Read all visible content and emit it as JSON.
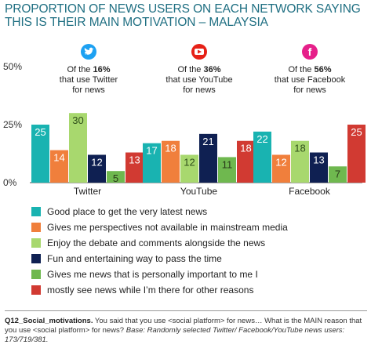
{
  "title_lines": [
    "PROPORTION OF NEWS USERS ON EACH NETWORK SAYING",
    "THIS IS THEIR MAIN MOTIVATION – MALAYSIA"
  ],
  "chart_data": {
    "type": "bar",
    "categories": [
      "Twitter",
      "YouTube",
      "Facebook"
    ],
    "y_ticks": [
      "0%",
      "25%",
      "50%"
    ],
    "ylim": [
      0,
      50
    ],
    "grid": false,
    "series": [
      {
        "name": "Good place to get the very latest news",
        "color": "#19b3b1",
        "values": [
          25,
          17,
          22
        ]
      },
      {
        "name": "Gives me perspectives not available in mainstream media",
        "color": "#f07f3c",
        "values": [
          14,
          18,
          12
        ]
      },
      {
        "name": "Enjoy the debate and comments alongside the news",
        "color": "#a8d86e",
        "values": [
          30,
          12,
          18
        ]
      },
      {
        "name": "Fun and entertaining way to pass the time",
        "color": "#0f2052",
        "values": [
          12,
          21,
          13
        ]
      },
      {
        "name": "Gives me news that is personally important to me I",
        "color": "#6fb84f",
        "values": [
          5,
          11,
          7
        ]
      },
      {
        "name": "mostly see news while I’m there for other reasons",
        "color": "#d13a32",
        "values": [
          13,
          18,
          25
        ]
      }
    ],
    "annotations": [
      {
        "icon": "twitter-icon",
        "line1_pre": "Of the ",
        "pct": "16%",
        "line2": "that use Twitter",
        "line3": "for news",
        "icon_color": "#1da1f2"
      },
      {
        "icon": "youtube-icon",
        "line1_pre": "Of the ",
        "pct": "36%",
        "line2": "that use YouTube",
        "line3": "for news",
        "icon_color": "#e62117"
      },
      {
        "icon": "facebook-icon",
        "line1_pre": "Of the ",
        "pct": "56%",
        "line2": "that use Facebook",
        "line3": "for news",
        "icon_color": "#e6208a"
      }
    ]
  },
  "footer": {
    "question_id": "Q12_Social_motivations.",
    "question_text": " You said that you use <social platform> for news… What is the MAIN reason that you use <social platform> for news?",
    "base": " Base: Randomly selected Twitter/ Facebook/YouTube news users: 173/719/381."
  }
}
